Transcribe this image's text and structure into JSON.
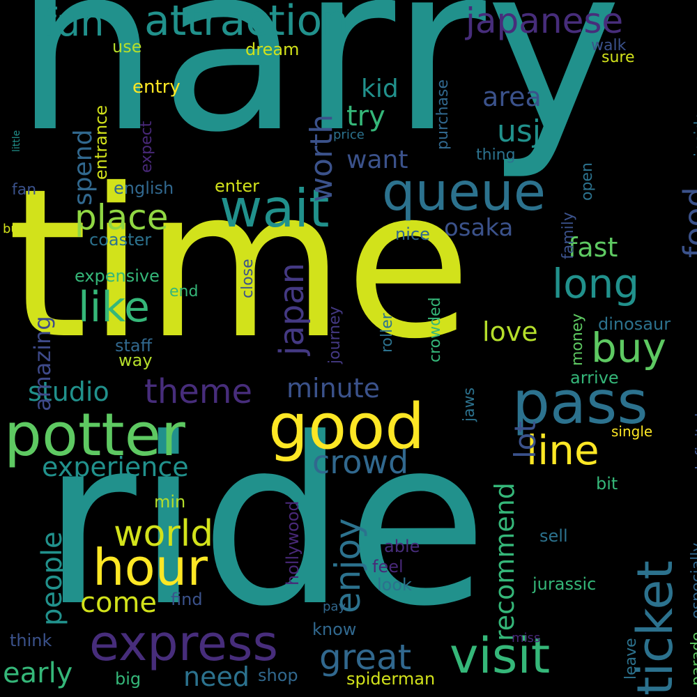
{
  "words": [
    {
      "id": "harry",
      "text": "harry",
      "color": "#21918c"
    },
    {
      "id": "time",
      "text": "time",
      "color": "#d2e21b"
    },
    {
      "id": "ride",
      "text": "ride",
      "color": "#21918c"
    },
    {
      "id": "potter",
      "text": "potter",
      "color": "#5ec962"
    },
    {
      "id": "good",
      "text": "good",
      "color": "#fde725"
    },
    {
      "id": "pass",
      "text": "pass",
      "color": "#2c728e"
    },
    {
      "id": "wait",
      "text": "wait",
      "color": "#21918c"
    },
    {
      "id": "queue",
      "text": "queue",
      "color": "#2c728e"
    },
    {
      "id": "hour",
      "text": "hour",
      "color": "#fde725"
    },
    {
      "id": "express",
      "text": "express",
      "color": "#472d7b"
    },
    {
      "id": "visit",
      "text": "visit",
      "color": "#35b779"
    },
    {
      "id": "ticket",
      "text": "ticket",
      "color": "#2c728e"
    },
    {
      "id": "attraction",
      "text": "attraction",
      "color": "#21918c"
    },
    {
      "id": "fun",
      "text": "fun",
      "color": "#21918c"
    },
    {
      "id": "japanese",
      "text": "japanese",
      "color": "#472d7b"
    },
    {
      "id": "like",
      "text": "like",
      "color": "#35b779"
    },
    {
      "id": "place",
      "text": "place",
      "color": "#90d743"
    },
    {
      "id": "long",
      "text": "long",
      "color": "#21918c"
    },
    {
      "id": "buy",
      "text": "buy",
      "color": "#5ec962"
    },
    {
      "id": "line",
      "text": "line",
      "color": "#fde725"
    },
    {
      "id": "crowd",
      "text": "crowd",
      "color": "#31688e"
    },
    {
      "id": "world",
      "text": "world",
      "color": "#d2e21b"
    },
    {
      "id": "great",
      "text": "great",
      "color": "#31688e"
    },
    {
      "id": "enjoy",
      "text": "enjoy",
      "color": "#2c728e"
    },
    {
      "id": "japan",
      "text": "japan",
      "color": "#443983"
    },
    {
      "id": "usj",
      "text": "usj",
      "color": "#21918c"
    },
    {
      "id": "food",
      "text": "food",
      "color": "#3b528b"
    },
    {
      "id": "worth",
      "text": "worth",
      "color": "#3b528b"
    },
    {
      "id": "theme",
      "text": "theme",
      "color": "#472d7b"
    },
    {
      "id": "studio",
      "text": "studio",
      "color": "#21918c"
    },
    {
      "id": "experience",
      "text": "experience",
      "color": "#21918c"
    },
    {
      "id": "people",
      "text": "people",
      "color": "#21918c"
    },
    {
      "id": "minute",
      "text": "minute",
      "color": "#3b528b"
    },
    {
      "id": "lot",
      "text": "lot",
      "color": "#3b528b"
    },
    {
      "id": "recommend",
      "text": "recommend",
      "color": "#35b779"
    },
    {
      "id": "come",
      "text": "come",
      "color": "#d2e21b"
    },
    {
      "id": "early",
      "text": "early",
      "color": "#35b779"
    },
    {
      "id": "need",
      "text": "need",
      "color": "#2c728e"
    },
    {
      "id": "osaka",
      "text": "osaka",
      "color": "#3b528b"
    },
    {
      "id": "fast",
      "text": "fast",
      "color": "#5ec962"
    },
    {
      "id": "love",
      "text": "love",
      "color": "#b5de2b"
    },
    {
      "id": "area",
      "text": "area",
      "color": "#3b528b"
    },
    {
      "id": "kid",
      "text": "kid",
      "color": "#21918c"
    },
    {
      "id": "try",
      "text": "try",
      "color": "#35b779"
    },
    {
      "id": "want",
      "text": "want",
      "color": "#3b528b"
    },
    {
      "id": "spend",
      "text": "spend",
      "color": "#31688e"
    },
    {
      "id": "amazing",
      "text": "amazing",
      "color": "#3e4a89"
    },
    {
      "id": "use",
      "text": "use",
      "color": "#b5de2b"
    },
    {
      "id": "dream",
      "text": "dream",
      "color": "#d2e21b"
    },
    {
      "id": "entry",
      "text": "entry",
      "color": "#fde725"
    },
    {
      "id": "entrance",
      "text": "entrance",
      "color": "#d2e21b"
    },
    {
      "id": "expect",
      "text": "expect",
      "color": "#482878"
    },
    {
      "id": "purchase",
      "text": "purchase",
      "color": "#31688e"
    },
    {
      "id": "price",
      "text": "price",
      "color": "#2c728e"
    },
    {
      "id": "walk",
      "text": "walk",
      "color": "#3b528b"
    },
    {
      "id": "sure",
      "text": "sure",
      "color": "#d2e21b"
    },
    {
      "id": "thing",
      "text": "thing",
      "color": "#2c728e"
    },
    {
      "id": "inside",
      "text": "inside",
      "color": "#2c728e"
    },
    {
      "id": "little",
      "text": "little",
      "color": "#21918c"
    },
    {
      "id": "fan",
      "text": "fan",
      "color": "#3b528b"
    },
    {
      "id": "english",
      "text": "english",
      "color": "#31688e"
    },
    {
      "id": "enter",
      "text": "enter",
      "color": "#d2e21b"
    },
    {
      "id": "open",
      "text": "open",
      "color": "#2c728e"
    },
    {
      "id": "family",
      "text": "family",
      "color": "#3b528b"
    },
    {
      "id": "busy",
      "text": "busy",
      "color": "#d2e21b"
    },
    {
      "id": "coaster",
      "text": "coaster",
      "color": "#2c728e"
    },
    {
      "id": "nice",
      "text": "nice",
      "color": "#31688e"
    },
    {
      "id": "expensive",
      "text": "expensive",
      "color": "#35b779"
    },
    {
      "id": "end",
      "text": "end",
      "color": "#35b779"
    },
    {
      "id": "close",
      "text": "close",
      "color": "#3b528b"
    },
    {
      "id": "staff",
      "text": "staff",
      "color": "#31688e"
    },
    {
      "id": "way",
      "text": "way",
      "color": "#b5de2b"
    },
    {
      "id": "journey",
      "text": "journey",
      "color": "#443983"
    },
    {
      "id": "roller",
      "text": "roller",
      "color": "#2c728e"
    },
    {
      "id": "crowded",
      "text": "crowded",
      "color": "#35b779"
    },
    {
      "id": "money",
      "text": "money",
      "color": "#5ec962"
    },
    {
      "id": "dinosaur",
      "text": "dinosaur",
      "color": "#2c728e"
    },
    {
      "id": "arrive",
      "text": "arrive",
      "color": "#35b779"
    },
    {
      "id": "definitely",
      "text": "definitely",
      "color": "#3b528b"
    },
    {
      "id": "single",
      "text": "single",
      "color": "#fde725"
    },
    {
      "id": "jaws",
      "text": "jaws",
      "color": "#2c728e"
    },
    {
      "id": "min",
      "text": "min",
      "color": "#b5de2b"
    },
    {
      "id": "hollywood",
      "text": "hollywood",
      "color": "#482878"
    },
    {
      "id": "able",
      "text": "able",
      "color": "#472d7b"
    },
    {
      "id": "feel",
      "text": "feel",
      "color": "#482878"
    },
    {
      "id": "look",
      "text": "look",
      "color": "#2c728e"
    },
    {
      "id": "sell",
      "text": "sell",
      "color": "#2c728e"
    },
    {
      "id": "jurassic",
      "text": "jurassic",
      "color": "#35b779"
    },
    {
      "id": "bit",
      "text": "bit",
      "color": "#35b779"
    },
    {
      "id": "especially",
      "text": "especially",
      "color": "#31688e"
    },
    {
      "id": "parade",
      "text": "parade",
      "color": "#5ec962"
    },
    {
      "id": "leave",
      "text": "leave",
      "color": "#2c728e"
    },
    {
      "id": "find",
      "text": "find",
      "color": "#3b528b"
    },
    {
      "id": "pay",
      "text": "pay",
      "color": "#31688e"
    },
    {
      "id": "miss",
      "text": "miss",
      "color": "#482878"
    },
    {
      "id": "know",
      "text": "know",
      "color": "#31688e"
    },
    {
      "id": "think",
      "text": "think",
      "color": "#3b528b"
    },
    {
      "id": "big",
      "text": "big",
      "color": "#35b779"
    },
    {
      "id": "shop",
      "text": "shop",
      "color": "#31688e"
    },
    {
      "id": "spiderman",
      "text": "spiderman",
      "color": "#d2e21b"
    }
  ]
}
